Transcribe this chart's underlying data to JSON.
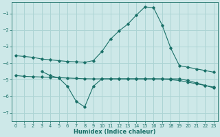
{
  "bg_color": "#cde8e8",
  "grid_color": "#acd4d4",
  "line_color": "#1a7068",
  "xlabel": "Humidex (Indice chaleur)",
  "xlim": [
    -0.5,
    23.5
  ],
  "ylim": [
    -7.5,
    -0.3
  ],
  "yticks": [
    -7,
    -6,
    -5,
    -4,
    -3,
    -2,
    -1
  ],
  "xticks": [
    0,
    1,
    2,
    3,
    4,
    5,
    6,
    7,
    8,
    9,
    10,
    11,
    12,
    13,
    14,
    15,
    16,
    17,
    18,
    19,
    20,
    21,
    22,
    23
  ],
  "line1_x": [
    0,
    1,
    2,
    3,
    4,
    5,
    6,
    7,
    8,
    9,
    10,
    11,
    12,
    13,
    14,
    15,
    16,
    17,
    18,
    19,
    20,
    21,
    22,
    23
  ],
  "line1_y": [
    -3.55,
    -3.6,
    -3.65,
    -3.75,
    -3.8,
    -3.85,
    -3.9,
    -3.92,
    -3.95,
    -3.85,
    -3.3,
    -2.55,
    -2.05,
    -1.65,
    -1.1,
    -0.6,
    -0.65,
    -1.7,
    -3.1,
    -4.15,
    -4.25,
    -4.35,
    -4.45,
    -4.55
  ],
  "line2_x": [
    0,
    1,
    2,
    3,
    4,
    5,
    6,
    7,
    8,
    9,
    10,
    11,
    12,
    13,
    14,
    15,
    16,
    17,
    18,
    19,
    20,
    21,
    22,
    23
  ],
  "line2_y": [
    -4.75,
    -4.8,
    -4.82,
    -4.84,
    -4.86,
    -4.88,
    -4.9,
    -4.92,
    -4.94,
    -4.95,
    -4.95,
    -4.95,
    -4.95,
    -4.95,
    -4.95,
    -4.95,
    -4.95,
    -4.96,
    -5.0,
    -5.05,
    -5.15,
    -5.25,
    -5.35,
    -5.45
  ],
  "line3_x": [
    3,
    4,
    5,
    6,
    7,
    8,
    9,
    10,
    11,
    12,
    13,
    14,
    15,
    16,
    17,
    18,
    19,
    20,
    21,
    22,
    23
  ],
  "line3_y": [
    -4.5,
    -4.75,
    -4.9,
    -5.4,
    -6.3,
    -6.65,
    -5.4,
    -4.95,
    -4.95,
    -4.95,
    -4.95,
    -4.95,
    -4.95,
    -4.95,
    -4.95,
    -4.95,
    -4.95,
    -5.05,
    -5.2,
    -5.35,
    -5.5
  ],
  "marker": "D",
  "marker_size": 1.8,
  "line_width": 0.8
}
